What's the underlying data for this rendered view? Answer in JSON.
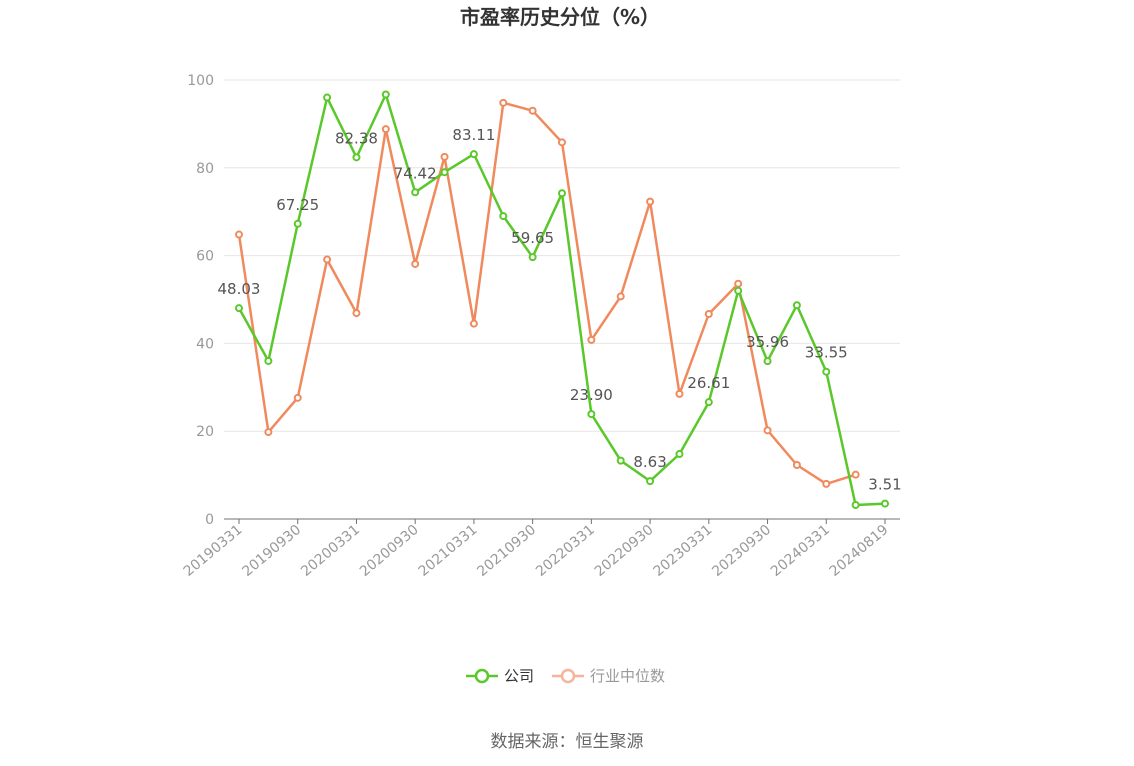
{
  "chart_data": {
    "type": "line",
    "title": "市盈率历史分位（%）",
    "ylim": [
      0,
      100
    ],
    "yticks": [
      0,
      20,
      40,
      60,
      80,
      100
    ],
    "grid": true,
    "legend_position": "bottom-center",
    "x_tick_labels": [
      "20190331",
      "20190930",
      "20200331",
      "20200930",
      "20210331",
      "20210930",
      "20220331",
      "20220930",
      "20230331",
      "20230930",
      "20240331",
      "20240819"
    ],
    "x": [
      "20190331",
      "20190630",
      "20190930",
      "20191231",
      "20200331",
      "20200630",
      "20200930",
      "20201231",
      "20210331",
      "20210630",
      "20210930",
      "20211231",
      "20220331",
      "20220630",
      "20220930",
      "20221231",
      "20230331",
      "20230630",
      "20230930",
      "20231231",
      "20240331",
      "20240630",
      "20240819"
    ],
    "series": [
      {
        "name": "公司",
        "color": "#5ac82a",
        "values": [
          48.03,
          36.0,
          67.25,
          96.0,
          82.38,
          96.7,
          74.42,
          79.0,
          83.11,
          69.0,
          59.65,
          74.2,
          23.9,
          13.3,
          8.63,
          14.8,
          26.61,
          52.0,
          35.96,
          48.7,
          33.55,
          3.2,
          3.51
        ],
        "labels": {
          "0": "48.03",
          "2": "67.25",
          "4": "82.38",
          "6": "74.42",
          "8": "83.11",
          "10": "59.65",
          "12": "23.90",
          "14": "8.63",
          "16": "26.61",
          "18": "35.96",
          "20": "33.55",
          "22": "3.51"
        }
      },
      {
        "name": "行业中位数",
        "color": "#f08a5d",
        "values": [
          64.8,
          19.8,
          27.6,
          59.1,
          46.9,
          88.8,
          58.1,
          82.5,
          44.5,
          94.8,
          93.0,
          85.8,
          40.8,
          50.7,
          72.3,
          28.5,
          46.7,
          53.6,
          20.2,
          12.3,
          8.0,
          10.1,
          null
        ]
      }
    ]
  },
  "legend": [
    {
      "label": "公司",
      "color": "#5ac82a",
      "text_color": "#333333"
    },
    {
      "label": "行业中位数",
      "color": "#f5b49c",
      "text_color": "#999999"
    }
  ],
  "source": "数据来源：恒生聚源"
}
